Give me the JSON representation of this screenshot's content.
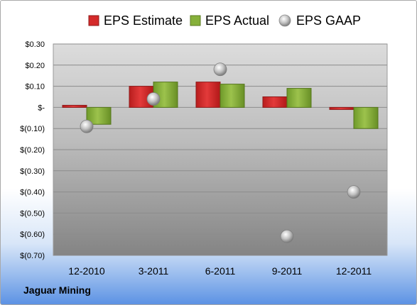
{
  "chart_data": {
    "type": "bar",
    "categories": [
      "12-2010",
      "3-2011",
      "6-2011",
      "9-2011",
      "12-2011"
    ],
    "series": [
      {
        "name": "EPS Estimate",
        "kind": "bar",
        "color": "#d42a2a",
        "values": [
          0.01,
          0.1,
          0.12,
          0.05,
          -0.01
        ]
      },
      {
        "name": "EPS Actual",
        "kind": "bar",
        "color": "#86b03a",
        "values": [
          -0.08,
          0.12,
          0.11,
          0.09,
          -0.1
        ]
      },
      {
        "name": "EPS GAAP",
        "kind": "marker",
        "color": "#b0b0b0",
        "values": [
          -0.09,
          0.04,
          0.18,
          -0.61,
          -0.4
        ]
      }
    ],
    "yticks": [
      0.3,
      0.2,
      0.1,
      0,
      -0.1,
      -0.2,
      -0.3,
      -0.4,
      -0.5,
      -0.6,
      -0.7
    ],
    "ytick_labels": [
      "$0.30",
      "$0.20",
      "$0.10",
      "$-",
      "$(0.10)",
      "$(0.20)",
      "$(0.30)",
      "$(0.40)",
      "$(0.50)",
      "$(0.60)",
      "$(0.70)"
    ],
    "ylim": [
      -0.7,
      0.3
    ],
    "grid": true,
    "legend": "top"
  },
  "company_name": "Jaguar Mining"
}
